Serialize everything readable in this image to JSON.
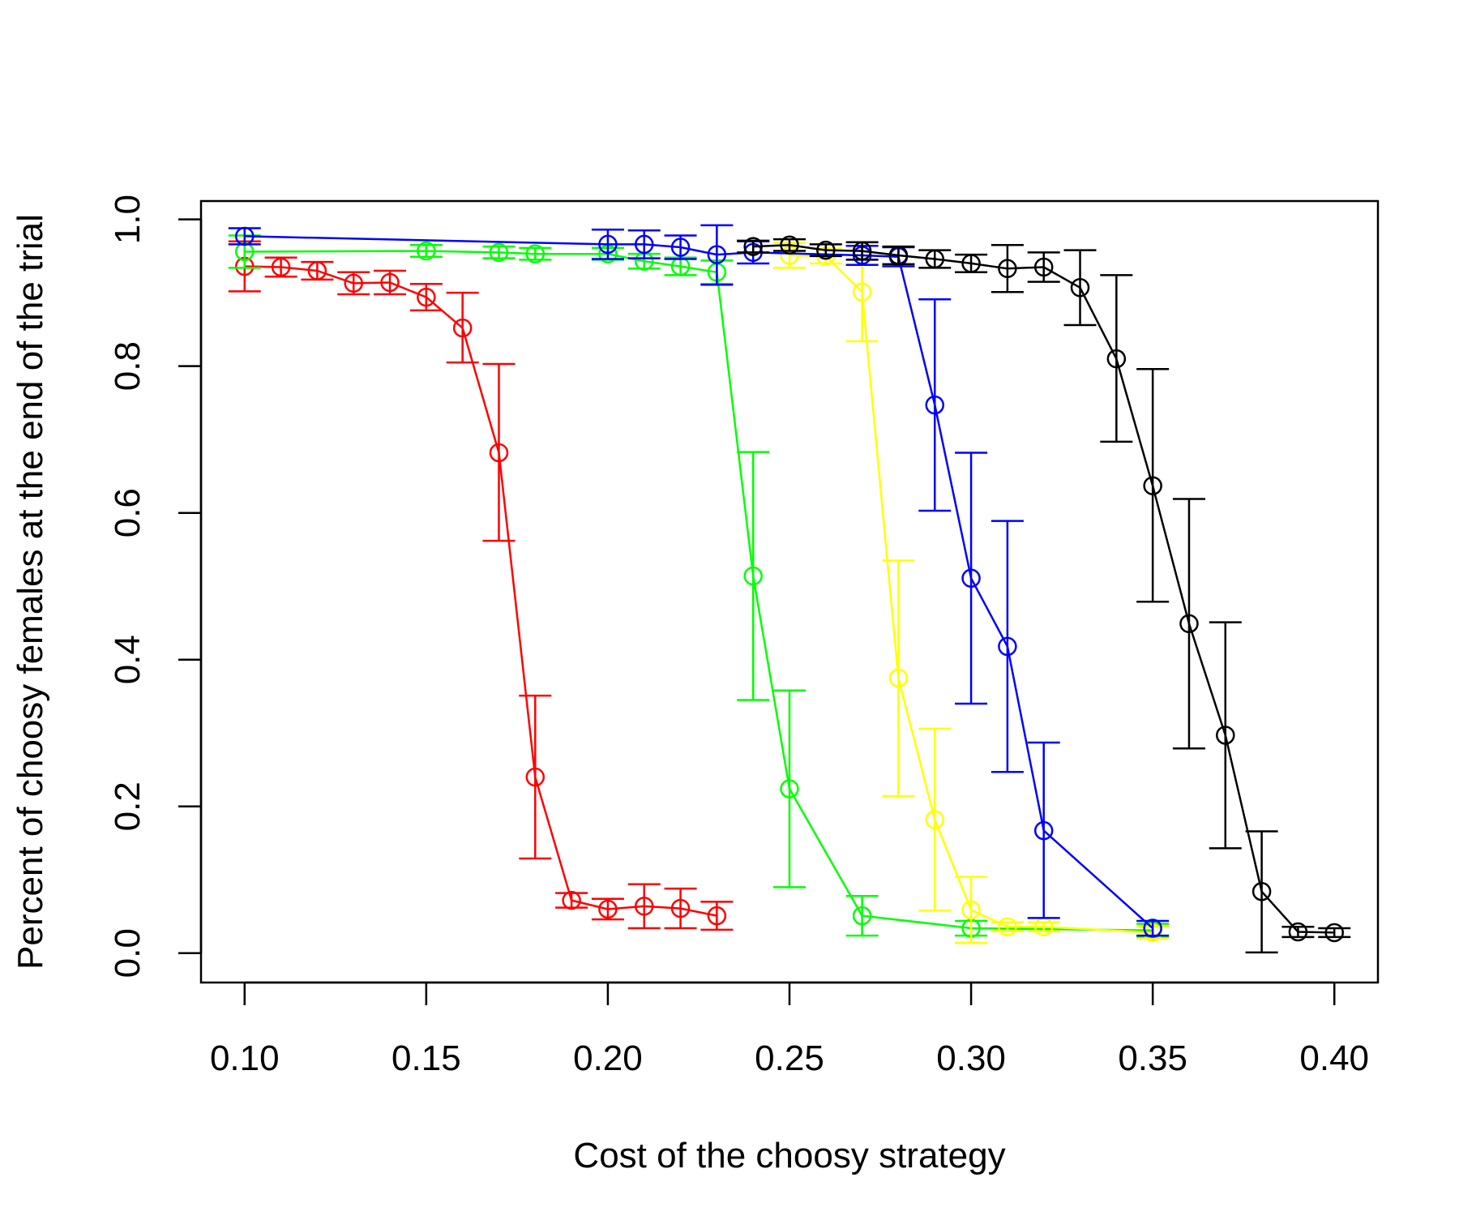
{
  "chart_data": {
    "type": "line",
    "title": "",
    "xlabel": "Cost of the choosy strategy",
    "ylabel": "Percent of choosy females at the end of the trial",
    "xlim": [
      0.088,
      0.412
    ],
    "ylim": [
      -0.04,
      1.025
    ],
    "grid": false,
    "legend": "none",
    "x_ticks": [
      {
        "value": 0.1,
        "label": "0.10"
      },
      {
        "value": 0.15,
        "label": "0.15"
      },
      {
        "value": 0.2,
        "label": "0.20"
      },
      {
        "value": 0.25,
        "label": "0.25"
      },
      {
        "value": 0.3,
        "label": "0.30"
      },
      {
        "value": 0.35,
        "label": "0.35"
      },
      {
        "value": 0.4,
        "label": "0.40"
      }
    ],
    "y_ticks": [
      {
        "value": 0.0,
        "label": "0.0"
      },
      {
        "value": 0.2,
        "label": "0.2"
      },
      {
        "value": 0.4,
        "label": "0.4"
      },
      {
        "value": 0.6,
        "label": "0.6"
      },
      {
        "value": 0.8,
        "label": "0.8"
      },
      {
        "value": 1.0,
        "label": "1.0"
      }
    ],
    "series": [
      {
        "name": "red",
        "color": "#ff0000",
        "points": [
          {
            "x": 0.1,
            "y": 0.936,
            "lo": 0.902,
            "hi": 0.97
          },
          {
            "x": 0.11,
            "y": 0.935,
            "lo": 0.922,
            "hi": 0.948
          },
          {
            "x": 0.12,
            "y": 0.93,
            "lo": 0.918,
            "hi": 0.942
          },
          {
            "x": 0.13,
            "y": 0.913,
            "lo": 0.898,
            "hi": 0.928
          },
          {
            "x": 0.14,
            "y": 0.914,
            "lo": 0.898,
            "hi": 0.93
          },
          {
            "x": 0.15,
            "y": 0.894,
            "lo": 0.876,
            "hi": 0.912
          },
          {
            "x": 0.16,
            "y": 0.852,
            "lo": 0.805,
            "hi": 0.9
          },
          {
            "x": 0.17,
            "y": 0.682,
            "lo": 0.562,
            "hi": 0.803
          },
          {
            "x": 0.18,
            "y": 0.24,
            "lo": 0.129,
            "hi": 0.351
          },
          {
            "x": 0.19,
            "y": 0.072,
            "lo": 0.062,
            "hi": 0.082
          },
          {
            "x": 0.2,
            "y": 0.06,
            "lo": 0.046,
            "hi": 0.074
          },
          {
            "x": 0.21,
            "y": 0.064,
            "lo": 0.034,
            "hi": 0.094
          },
          {
            "x": 0.22,
            "y": 0.061,
            "lo": 0.034,
            "hi": 0.088
          },
          {
            "x": 0.23,
            "y": 0.051,
            "lo": 0.032,
            "hi": 0.07
          }
        ]
      },
      {
        "name": "green",
        "color": "#00ff00",
        "points": [
          {
            "x": 0.1,
            "y": 0.956,
            "lo": 0.934,
            "hi": 0.978
          },
          {
            "x": 0.15,
            "y": 0.957,
            "lo": 0.949,
            "hi": 0.965
          },
          {
            "x": 0.17,
            "y": 0.955,
            "lo": 0.947,
            "hi": 0.963
          },
          {
            "x": 0.18,
            "y": 0.953,
            "lo": 0.945,
            "hi": 0.961
          },
          {
            "x": 0.2,
            "y": 0.953,
            "lo": 0.945,
            "hi": 0.961
          },
          {
            "x": 0.21,
            "y": 0.943,
            "lo": 0.933,
            "hi": 0.953
          },
          {
            "x": 0.22,
            "y": 0.936,
            "lo": 0.924,
            "hi": 0.948
          },
          {
            "x": 0.23,
            "y": 0.928,
            "lo": 0.912,
            "hi": 0.944
          },
          {
            "x": 0.24,
            "y": 0.514,
            "lo": 0.345,
            "hi": 0.683
          },
          {
            "x": 0.25,
            "y": 0.224,
            "lo": 0.09,
            "hi": 0.358
          },
          {
            "x": 0.27,
            "y": 0.051,
            "lo": 0.024,
            "hi": 0.078
          },
          {
            "x": 0.3,
            "y": 0.034,
            "lo": 0.024,
            "hi": 0.044
          },
          {
            "x": 0.35,
            "y": 0.031,
            "lo": 0.022,
            "hi": 0.04
          }
        ]
      },
      {
        "name": "yellow",
        "color": "#ffff00",
        "points": [
          {
            "x": 0.25,
            "y": 0.951,
            "lo": 0.934,
            "hi": 0.968
          },
          {
            "x": 0.26,
            "y": 0.95,
            "lo": 0.94,
            "hi": 0.96
          },
          {
            "x": 0.27,
            "y": 0.901,
            "lo": 0.834,
            "hi": 0.968
          },
          {
            "x": 0.28,
            "y": 0.375,
            "lo": 0.214,
            "hi": 0.535
          },
          {
            "x": 0.29,
            "y": 0.182,
            "lo": 0.058,
            "hi": 0.306
          },
          {
            "x": 0.3,
            "y": 0.059,
            "lo": 0.014,
            "hi": 0.104
          },
          {
            "x": 0.31,
            "y": 0.036,
            "lo": 0.03,
            "hi": 0.042
          },
          {
            "x": 0.32,
            "y": 0.036,
            "lo": 0.03,
            "hi": 0.042
          },
          {
            "x": 0.35,
            "y": 0.028,
            "lo": 0.02,
            "hi": 0.036
          }
        ]
      },
      {
        "name": "blue",
        "color": "#0000ff",
        "points": [
          {
            "x": 0.1,
            "y": 0.977,
            "lo": 0.966,
            "hi": 0.988
          },
          {
            "x": 0.2,
            "y": 0.966,
            "lo": 0.946,
            "hi": 0.986
          },
          {
            "x": 0.21,
            "y": 0.966,
            "lo": 0.947,
            "hi": 0.985
          },
          {
            "x": 0.22,
            "y": 0.962,
            "lo": 0.946,
            "hi": 0.978
          },
          {
            "x": 0.23,
            "y": 0.952,
            "lo": 0.911,
            "hi": 0.992
          },
          {
            "x": 0.24,
            "y": 0.955,
            "lo": 0.94,
            "hi": 0.97
          },
          {
            "x": 0.27,
            "y": 0.951,
            "lo": 0.938,
            "hi": 0.964
          },
          {
            "x": 0.28,
            "y": 0.949,
            "lo": 0.936,
            "hi": 0.962
          },
          {
            "x": 0.29,
            "y": 0.747,
            "lo": 0.603,
            "hi": 0.891
          },
          {
            "x": 0.3,
            "y": 0.511,
            "lo": 0.34,
            "hi": 0.682
          },
          {
            "x": 0.31,
            "y": 0.418,
            "lo": 0.247,
            "hi": 0.589
          },
          {
            "x": 0.32,
            "y": 0.167,
            "lo": 0.048,
            "hi": 0.287
          },
          {
            "x": 0.35,
            "y": 0.034,
            "lo": 0.024,
            "hi": 0.044
          }
        ]
      },
      {
        "name": "black",
        "color": "#000000",
        "points": [
          {
            "x": 0.24,
            "y": 0.963,
            "lo": 0.955,
            "hi": 0.971
          },
          {
            "x": 0.25,
            "y": 0.965,
            "lo": 0.957,
            "hi": 0.973
          },
          {
            "x": 0.26,
            "y": 0.958,
            "lo": 0.95,
            "hi": 0.966
          },
          {
            "x": 0.27,
            "y": 0.957,
            "lo": 0.945,
            "hi": 0.969
          },
          {
            "x": 0.28,
            "y": 0.951,
            "lo": 0.939,
            "hi": 0.963
          },
          {
            "x": 0.29,
            "y": 0.946,
            "lo": 0.934,
            "hi": 0.958
          },
          {
            "x": 0.3,
            "y": 0.94,
            "lo": 0.928,
            "hi": 0.952
          },
          {
            "x": 0.31,
            "y": 0.933,
            "lo": 0.901,
            "hi": 0.965
          },
          {
            "x": 0.32,
            "y": 0.935,
            "lo": 0.915,
            "hi": 0.955
          },
          {
            "x": 0.33,
            "y": 0.907,
            "lo": 0.856,
            "hi": 0.958
          },
          {
            "x": 0.34,
            "y": 0.81,
            "lo": 0.697,
            "hi": 0.924
          },
          {
            "x": 0.35,
            "y": 0.637,
            "lo": 0.479,
            "hi": 0.796
          },
          {
            "x": 0.36,
            "y": 0.449,
            "lo": 0.279,
            "hi": 0.619
          },
          {
            "x": 0.37,
            "y": 0.297,
            "lo": 0.143,
            "hi": 0.451
          },
          {
            "x": 0.38,
            "y": 0.084,
            "lo": 0.001,
            "hi": 0.166
          },
          {
            "x": 0.39,
            "y": 0.029,
            "lo": 0.022,
            "hi": 0.036
          },
          {
            "x": 0.4,
            "y": 0.028,
            "lo": 0.022,
            "hi": 0.034
          }
        ]
      }
    ]
  }
}
